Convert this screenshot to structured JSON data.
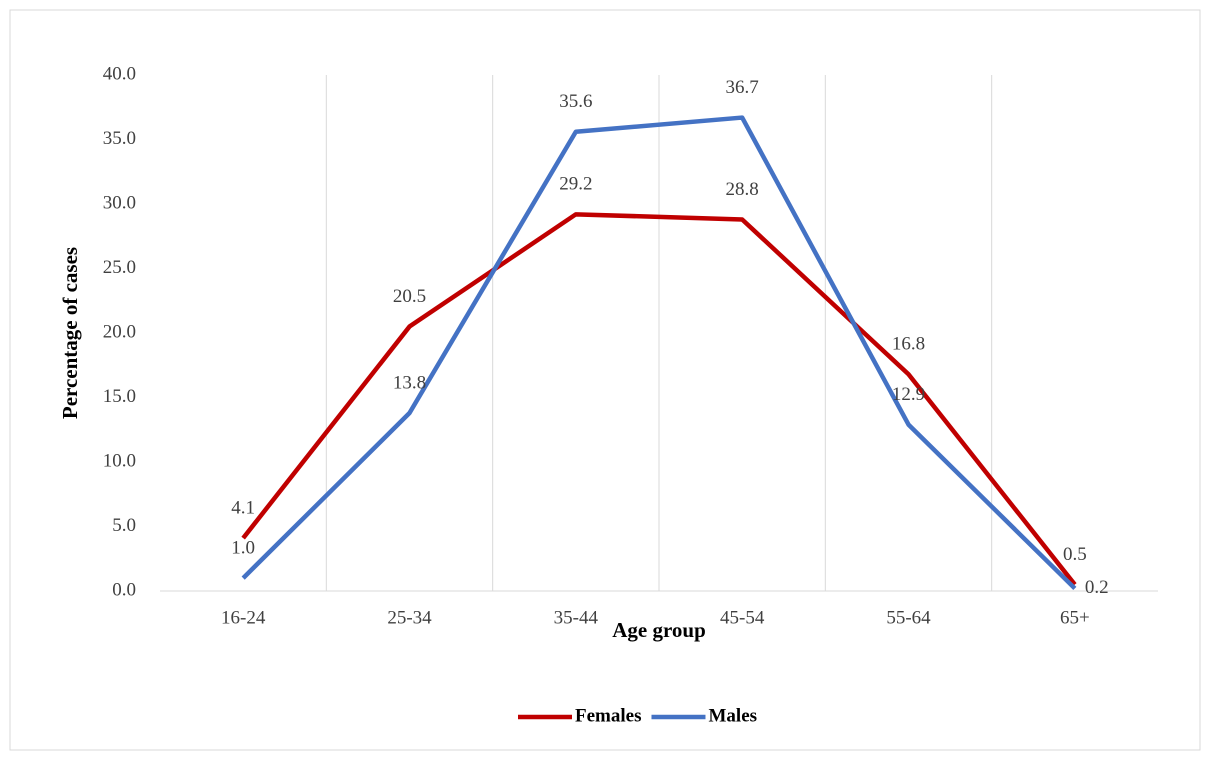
{
  "chart_data": {
    "type": "line",
    "x_label": "Age group",
    "y_label": "Percentage of cases",
    "categories": [
      "16-24",
      "25-34",
      "35-44",
      "45-54",
      "55-64",
      "65+"
    ],
    "series": [
      {
        "name": "Females",
        "color": "#c00000",
        "values": [
          4.1,
          20.5,
          29.2,
          28.8,
          16.8,
          0.5
        ],
        "value_labels": [
          "4.1",
          "20.5",
          "29.2",
          "28.8",
          "16.8",
          "0.5"
        ]
      },
      {
        "name": "Males",
        "color": "#4472c4",
        "values": [
          1.0,
          13.8,
          35.6,
          36.7,
          12.9,
          0.2
        ],
        "value_labels": [
          "1.0",
          "13.8",
          "35.6",
          "36.7",
          "12.9",
          "0.2"
        ]
      }
    ],
    "ylim": [
      0,
      40
    ],
    "yticks": [
      {
        "value": 0,
        "label": "0.0"
      },
      {
        "value": 5,
        "label": "5.0"
      },
      {
        "value": 10,
        "label": "10.0"
      },
      {
        "value": 15,
        "label": "15.0"
      },
      {
        "value": 20,
        "label": "20.0"
      },
      {
        "value": 25,
        "label": "25.0"
      },
      {
        "value": 30,
        "label": "30.0"
      },
      {
        "value": 35,
        "label": "35.0"
      },
      {
        "value": 40,
        "label": "40.0"
      }
    ],
    "legend": "bottom"
  }
}
